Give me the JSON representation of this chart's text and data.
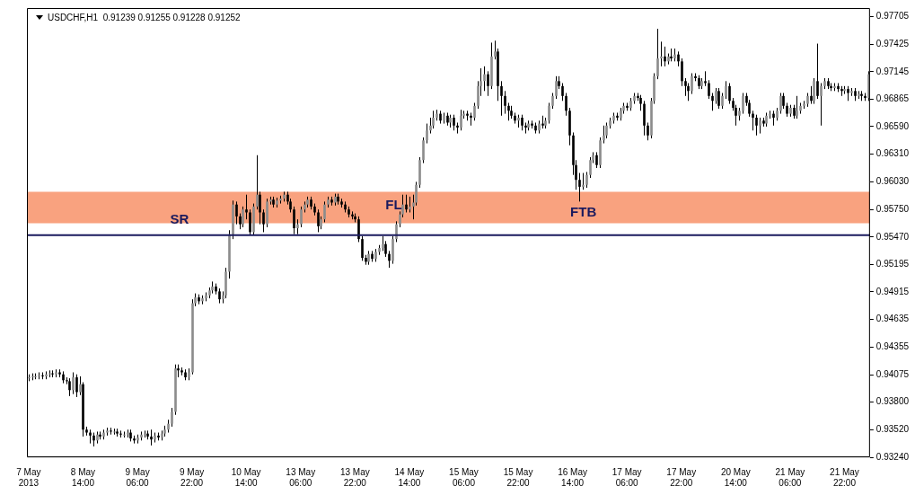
{
  "chart_data": {
    "type": "candlestick",
    "title": "USDCHF,H1  0.91239 0.91255 0.91228 0.91252",
    "categories": [
      "7 May 2013",
      null,
      null,
      null,
      null,
      null,
      null,
      null,
      null,
      null,
      null,
      null,
      null,
      null,
      null,
      null,
      "8 May 14:00",
      null,
      null,
      null,
      null,
      null,
      null,
      null,
      null,
      null,
      null,
      null,
      null,
      null,
      null,
      null,
      "9 May 06:00",
      null,
      null,
      null,
      null,
      null,
      null,
      null,
      null,
      null,
      null,
      null,
      null,
      null,
      null,
      null,
      "9 May 22:00",
      null,
      null,
      null,
      null,
      null,
      null,
      null,
      null,
      null,
      null,
      null,
      null,
      null,
      null,
      null,
      "10 May 14:00",
      null,
      null,
      null,
      null,
      null,
      null,
      null,
      null,
      null,
      null,
      null,
      null,
      null,
      null,
      null,
      "13 May 06:00",
      null,
      null,
      null,
      null,
      null,
      null,
      null,
      null,
      null,
      null,
      null,
      null,
      null,
      null,
      null,
      "13 May 22:00",
      null,
      null,
      null,
      null,
      null,
      null,
      null,
      null,
      null,
      null,
      null,
      null,
      null,
      null,
      null,
      "14 May 14:00",
      null,
      null,
      null,
      null,
      null,
      null,
      null,
      null,
      null,
      null,
      null,
      null,
      null,
      null,
      null,
      "15 May 06:00",
      null,
      null,
      null,
      null,
      null,
      null,
      null,
      null,
      null,
      null,
      null,
      null,
      null,
      null,
      null,
      "15 May 22:00",
      null,
      null,
      null,
      null,
      null,
      null,
      null,
      null,
      null,
      null,
      null,
      null,
      null,
      null,
      null,
      "16 May 14:00",
      null,
      null,
      null,
      null,
      null,
      null,
      null,
      null,
      null,
      null,
      null,
      null,
      null,
      null,
      null,
      "17 May 06:00",
      null,
      null,
      null,
      null,
      null,
      null,
      null,
      null,
      null,
      null,
      null,
      null,
      null,
      null,
      null,
      "17 May 22:00",
      null,
      null,
      null,
      null,
      null,
      null,
      null,
      null,
      null,
      null,
      null,
      null,
      null,
      null,
      null,
      "20 May 14:00",
      null,
      null,
      null,
      null,
      null,
      null,
      null,
      null,
      null,
      null,
      null,
      null,
      null,
      null,
      null,
      "21 May 06:00",
      null,
      null,
      null,
      null,
      null,
      null,
      null,
      null,
      null,
      null,
      null,
      null,
      null,
      null,
      null,
      "21 May 22:00",
      null,
      null,
      null,
      null,
      null,
      null,
      null
    ],
    "ohlc": [
      [
        0.9404,
        0.9408,
        0.9401,
        0.9405
      ],
      [
        0.9405,
        0.9409,
        0.9402,
        0.9406
      ],
      [
        0.9406,
        0.9409,
        0.9403,
        0.9406
      ],
      [
        0.9406,
        0.941,
        0.9403,
        0.9407
      ],
      [
        0.9407,
        0.941,
        0.9403,
        0.9406
      ],
      [
        0.9406,
        0.9411,
        0.9403,
        0.9408
      ],
      [
        0.9408,
        0.9412,
        0.9405,
        0.9409
      ],
      [
        0.9409,
        0.9412,
        0.9405,
        0.9408
      ],
      [
        0.9408,
        0.9413,
        0.9405,
        0.941
      ],
      [
        0.941,
        0.9413,
        0.9405,
        0.9408
      ],
      [
        0.9408,
        0.9411,
        0.9399,
        0.9402
      ],
      [
        0.9402,
        0.9405,
        0.9398,
        0.9401
      ],
      [
        0.9401,
        0.9404,
        0.9386,
        0.9392
      ],
      [
        0.9392,
        0.941,
        0.9388,
        0.9405
      ],
      [
        0.9405,
        0.9408,
        0.9385,
        0.939
      ],
      [
        0.939,
        0.9406,
        0.9387,
        0.9398
      ],
      [
        0.9398,
        0.94,
        0.9345,
        0.9352
      ],
      [
        0.9352,
        0.9355,
        0.9346,
        0.9349
      ],
      [
        0.9349,
        0.9352,
        0.9338,
        0.9346
      ],
      [
        0.9346,
        0.9349,
        0.9335,
        0.9341
      ],
      [
        0.9341,
        0.935,
        0.9338,
        0.9347
      ],
      [
        0.9347,
        0.935,
        0.9342,
        0.9345
      ],
      [
        0.9345,
        0.9352,
        0.9342,
        0.9349
      ],
      [
        0.9349,
        0.9354,
        0.9346,
        0.9351
      ],
      [
        0.9351,
        0.9354,
        0.9347,
        0.935
      ],
      [
        0.935,
        0.9353,
        0.9347,
        0.935
      ],
      [
        0.935,
        0.9353,
        0.9345,
        0.9348
      ],
      [
        0.9348,
        0.9351,
        0.9344,
        0.9347
      ],
      [
        0.9347,
        0.935,
        0.9344,
        0.9347
      ],
      [
        0.9347,
        0.9352,
        0.9344,
        0.9349
      ],
      [
        0.9349,
        0.9352,
        0.934,
        0.9343
      ],
      [
        0.9343,
        0.9346,
        0.9338,
        0.9341
      ],
      [
        0.9341,
        0.9347,
        0.9338,
        0.9344
      ],
      [
        0.9344,
        0.935,
        0.9341,
        0.9347
      ],
      [
        0.9347,
        0.9351,
        0.9344,
        0.9348
      ],
      [
        0.9348,
        0.9351,
        0.9342,
        0.9345
      ],
      [
        0.9345,
        0.9352,
        0.9336,
        0.9342
      ],
      [
        0.9342,
        0.9349,
        0.9339,
        0.9346
      ],
      [
        0.9346,
        0.9349,
        0.9341,
        0.9344
      ],
      [
        0.9344,
        0.9351,
        0.9341,
        0.9348
      ],
      [
        0.9348,
        0.9356,
        0.9345,
        0.9352
      ],
      [
        0.9352,
        0.9362,
        0.9349,
        0.9358
      ],
      [
        0.9358,
        0.9374,
        0.9355,
        0.937
      ],
      [
        0.937,
        0.9418,
        0.9367,
        0.9414
      ],
      [
        0.9414,
        0.9418,
        0.9405,
        0.9412
      ],
      [
        0.9412,
        0.9415,
        0.9407,
        0.941
      ],
      [
        0.941,
        0.9413,
        0.9402,
        0.9405
      ],
      [
        0.9405,
        0.9414,
        0.9402,
        0.941
      ],
      [
        0.941,
        0.9484,
        0.9408,
        0.948
      ],
      [
        0.948,
        0.949,
        0.9477,
        0.9486
      ],
      [
        0.9486,
        0.9489,
        0.9479,
        0.9482
      ],
      [
        0.9482,
        0.9488,
        0.9479,
        0.9485
      ],
      [
        0.9485,
        0.9491,
        0.9482,
        0.9488
      ],
      [
        0.9488,
        0.9496,
        0.9485,
        0.9493
      ],
      [
        0.9493,
        0.9502,
        0.949,
        0.9497
      ],
      [
        0.9497,
        0.95,
        0.9489,
        0.9492
      ],
      [
        0.9492,
        0.9495,
        0.948,
        0.9484
      ],
      [
        0.9484,
        0.9492,
        0.948,
        0.9488
      ],
      [
        0.9488,
        0.9516,
        0.9485,
        0.9512
      ],
      [
        0.9512,
        0.9554,
        0.9505,
        0.955
      ],
      [
        0.955,
        0.9584,
        0.9545,
        0.958
      ],
      [
        0.958,
        0.9583,
        0.956,
        0.9568
      ],
      [
        0.9568,
        0.9571,
        0.9555,
        0.956
      ],
      [
        0.956,
        0.9578,
        0.9557,
        0.9575
      ],
      [
        0.9575,
        0.959,
        0.9565,
        0.9572
      ],
      [
        0.9572,
        0.9575,
        0.9549,
        0.9552
      ],
      [
        0.9552,
        0.9581,
        0.9549,
        0.9578
      ],
      [
        0.9578,
        0.963,
        0.9575,
        0.959
      ],
      [
        0.959,
        0.9593,
        0.956,
        0.9572
      ],
      [
        0.9572,
        0.9575,
        0.9552,
        0.956
      ],
      [
        0.956,
        0.9586,
        0.9557,
        0.9583
      ],
      [
        0.9583,
        0.9588,
        0.958,
        0.9585
      ],
      [
        0.9585,
        0.9588,
        0.9577,
        0.958
      ],
      [
        0.958,
        0.9587,
        0.9577,
        0.9584
      ],
      [
        0.9584,
        0.9589,
        0.9581,
        0.9586
      ],
      [
        0.9586,
        0.9593,
        0.9583,
        0.959
      ],
      [
        0.959,
        0.9593,
        0.958,
        0.9583
      ],
      [
        0.9583,
        0.9586,
        0.9572,
        0.9575
      ],
      [
        0.9575,
        0.9578,
        0.955,
        0.9556
      ],
      [
        0.9556,
        0.9565,
        0.955,
        0.956
      ],
      [
        0.956,
        0.9578,
        0.9557,
        0.9575
      ],
      [
        0.9575,
        0.9583,
        0.9572,
        0.958
      ],
      [
        0.958,
        0.9588,
        0.9577,
        0.9585
      ],
      [
        0.9585,
        0.9588,
        0.9575,
        0.9578
      ],
      [
        0.9578,
        0.9581,
        0.9569,
        0.9572
      ],
      [
        0.9572,
        0.9575,
        0.9552,
        0.9558
      ],
      [
        0.9558,
        0.9568,
        0.9555,
        0.9565
      ],
      [
        0.9565,
        0.9583,
        0.9562,
        0.958
      ],
      [
        0.958,
        0.9588,
        0.9577,
        0.9585
      ],
      [
        0.9585,
        0.9588,
        0.9579,
        0.9582
      ],
      [
        0.9582,
        0.9591,
        0.9579,
        0.9588
      ],
      [
        0.9588,
        0.9591,
        0.958,
        0.9583
      ],
      [
        0.9583,
        0.9586,
        0.9577,
        0.958
      ],
      [
        0.958,
        0.9583,
        0.9572,
        0.9575
      ],
      [
        0.9575,
        0.9578,
        0.9567,
        0.957
      ],
      [
        0.957,
        0.9573,
        0.9565,
        0.9568
      ],
      [
        0.9568,
        0.9571,
        0.9562,
        0.9565
      ],
      [
        0.9565,
        0.9568,
        0.9542,
        0.9545
      ],
      [
        0.9545,
        0.9548,
        0.9523,
        0.9526
      ],
      [
        0.9526,
        0.9529,
        0.9519,
        0.9522
      ],
      [
        0.9522,
        0.9533,
        0.9519,
        0.953
      ],
      [
        0.953,
        0.9533,
        0.9522,
        0.9525
      ],
      [
        0.9525,
        0.9535,
        0.9522,
        0.9532
      ],
      [
        0.9532,
        0.9539,
        0.9529,
        0.9536
      ],
      [
        0.9536,
        0.9548,
        0.9533,
        0.954
      ],
      [
        0.954,
        0.9543,
        0.9527,
        0.953
      ],
      [
        0.953,
        0.9533,
        0.9516,
        0.9523
      ],
      [
        0.9523,
        0.9548,
        0.952,
        0.9545
      ],
      [
        0.9545,
        0.9563,
        0.9542,
        0.956
      ],
      [
        0.956,
        0.9573,
        0.9557,
        0.957
      ],
      [
        0.957,
        0.959,
        0.9567,
        0.958
      ],
      [
        0.958,
        0.959,
        0.9572,
        0.9575
      ],
      [
        0.9575,
        0.9588,
        0.9572,
        0.9578
      ],
      [
        0.9578,
        0.959,
        0.9565,
        0.9582
      ],
      [
        0.9582,
        0.9603,
        0.9579,
        0.96
      ],
      [
        0.96,
        0.9628,
        0.9597,
        0.9625
      ],
      [
        0.9625,
        0.9648,
        0.9622,
        0.9645
      ],
      [
        0.9645,
        0.9662,
        0.9642,
        0.9655
      ],
      [
        0.9655,
        0.9668,
        0.9652,
        0.966
      ],
      [
        0.966,
        0.9675,
        0.9657,
        0.9668
      ],
      [
        0.9668,
        0.9676,
        0.9665,
        0.9672
      ],
      [
        0.9672,
        0.9675,
        0.9662,
        0.9665
      ],
      [
        0.9665,
        0.9673,
        0.9662,
        0.967
      ],
      [
        0.967,
        0.9673,
        0.966,
        0.9663
      ],
      [
        0.9663,
        0.9671,
        0.9658,
        0.9668
      ],
      [
        0.9668,
        0.9671,
        0.9655,
        0.966
      ],
      [
        0.966,
        0.9663,
        0.9652,
        0.9658
      ],
      [
        0.9658,
        0.9676,
        0.9655,
        0.967
      ],
      [
        0.967,
        0.9675,
        0.9667,
        0.9672
      ],
      [
        0.9672,
        0.9675,
        0.9665,
        0.967
      ],
      [
        0.967,
        0.9673,
        0.966,
        0.9668
      ],
      [
        0.9668,
        0.9683,
        0.9665,
        0.968
      ],
      [
        0.968,
        0.9705,
        0.9677,
        0.97
      ],
      [
        0.97,
        0.9718,
        0.969,
        0.9705
      ],
      [
        0.9705,
        0.972,
        0.9695,
        0.9712
      ],
      [
        0.9712,
        0.9715,
        0.969,
        0.97
      ],
      [
        0.97,
        0.9744,
        0.9697,
        0.973
      ],
      [
        0.973,
        0.9746,
        0.9727,
        0.9735
      ],
      [
        0.9735,
        0.9738,
        0.9685,
        0.97
      ],
      [
        0.97,
        0.9705,
        0.967,
        0.969
      ],
      [
        0.969,
        0.9695,
        0.9672,
        0.968
      ],
      [
        0.968,
        0.9683,
        0.9665,
        0.9675
      ],
      [
        0.9675,
        0.968,
        0.9667,
        0.967
      ],
      [
        0.967,
        0.9673,
        0.9662,
        0.9665
      ],
      [
        0.9665,
        0.9671,
        0.9658,
        0.9668
      ],
      [
        0.9668,
        0.9671,
        0.9655,
        0.966
      ],
      [
        0.966,
        0.9663,
        0.9652,
        0.9658
      ],
      [
        0.9658,
        0.9665,
        0.9655,
        0.9662
      ],
      [
        0.9662,
        0.9665,
        0.9657,
        0.966
      ],
      [
        0.966,
        0.9663,
        0.9652,
        0.9655
      ],
      [
        0.9655,
        0.9665,
        0.9652,
        0.9662
      ],
      [
        0.9662,
        0.967,
        0.9657,
        0.966
      ],
      [
        0.966,
        0.9668,
        0.9657,
        0.9665
      ],
      [
        0.9665,
        0.9683,
        0.9662,
        0.968
      ],
      [
        0.968,
        0.9693,
        0.9677,
        0.969
      ],
      [
        0.969,
        0.971,
        0.9687,
        0.9705
      ],
      [
        0.9705,
        0.971,
        0.9697,
        0.97
      ],
      [
        0.97,
        0.9703,
        0.9685,
        0.969
      ],
      [
        0.969,
        0.9693,
        0.967,
        0.9675
      ],
      [
        0.9675,
        0.9678,
        0.964,
        0.965
      ],
      [
        0.965,
        0.9653,
        0.961,
        0.962
      ],
      [
        0.962,
        0.9625,
        0.9595,
        0.9605
      ],
      [
        0.9605,
        0.9612,
        0.9583,
        0.9598
      ],
      [
        0.9598,
        0.9612,
        0.9595,
        0.96
      ],
      [
        0.96,
        0.9613,
        0.9597,
        0.961
      ],
      [
        0.961,
        0.9628,
        0.9607,
        0.9625
      ],
      [
        0.9625,
        0.9633,
        0.9622,
        0.963
      ],
      [
        0.963,
        0.9633,
        0.9617,
        0.962
      ],
      [
        0.962,
        0.9648,
        0.9617,
        0.9645
      ],
      [
        0.9645,
        0.966,
        0.9642,
        0.965
      ],
      [
        0.965,
        0.9663,
        0.9647,
        0.966
      ],
      [
        0.966,
        0.9668,
        0.9657,
        0.9665
      ],
      [
        0.9665,
        0.9673,
        0.9662,
        0.967
      ],
      [
        0.967,
        0.9673,
        0.9665,
        0.9668
      ],
      [
        0.9668,
        0.9678,
        0.9665,
        0.9675
      ],
      [
        0.9675,
        0.9683,
        0.9672,
        0.968
      ],
      [
        0.968,
        0.9683,
        0.9675,
        0.9678
      ],
      [
        0.9678,
        0.9688,
        0.9675,
        0.9685
      ],
      [
        0.9685,
        0.9693,
        0.9682,
        0.969
      ],
      [
        0.969,
        0.9693,
        0.9685,
        0.9688
      ],
      [
        0.9688,
        0.9691,
        0.9675,
        0.9682
      ],
      [
        0.9682,
        0.9685,
        0.965,
        0.966
      ],
      [
        0.966,
        0.9663,
        0.9645,
        0.965
      ],
      [
        0.965,
        0.9688,
        0.9647,
        0.9685
      ],
      [
        0.9685,
        0.9713,
        0.9682,
        0.971
      ],
      [
        0.971,
        0.9758,
        0.9707,
        0.9728
      ],
      [
        0.9728,
        0.9745,
        0.972,
        0.973
      ],
      [
        0.973,
        0.974,
        0.972,
        0.9725
      ],
      [
        0.9725,
        0.9733,
        0.9722,
        0.973
      ],
      [
        0.973,
        0.9738,
        0.9725,
        0.9728
      ],
      [
        0.9728,
        0.9738,
        0.9725,
        0.9732
      ],
      [
        0.9732,
        0.9735,
        0.972,
        0.9725
      ],
      [
        0.9725,
        0.9728,
        0.97,
        0.9705
      ],
      [
        0.9705,
        0.9708,
        0.969,
        0.97
      ],
      [
        0.97,
        0.9703,
        0.9685,
        0.9695
      ],
      [
        0.9695,
        0.9713,
        0.9692,
        0.971
      ],
      [
        0.971,
        0.9713,
        0.9705,
        0.9708
      ],
      [
        0.9708,
        0.9711,
        0.9697,
        0.97
      ],
      [
        0.97,
        0.9708,
        0.9697,
        0.9705
      ],
      [
        0.9705,
        0.9715,
        0.97,
        0.9703
      ],
      [
        0.9703,
        0.9706,
        0.9687,
        0.969
      ],
      [
        0.969,
        0.9693,
        0.9675,
        0.9685
      ],
      [
        0.9685,
        0.9698,
        0.9682,
        0.9695
      ],
      [
        0.9695,
        0.9698,
        0.9677,
        0.968
      ],
      [
        0.968,
        0.9693,
        0.9677,
        0.969
      ],
      [
        0.969,
        0.9705,
        0.9687,
        0.97
      ],
      [
        0.97,
        0.9703,
        0.9682,
        0.9685
      ],
      [
        0.9685,
        0.9688,
        0.9675,
        0.9678
      ],
      [
        0.9678,
        0.9681,
        0.966,
        0.967
      ],
      [
        0.967,
        0.9678,
        0.9665,
        0.9675
      ],
      [
        0.9675,
        0.9693,
        0.9672,
        0.969
      ],
      [
        0.969,
        0.9693,
        0.968,
        0.9683
      ],
      [
        0.9683,
        0.9686,
        0.9669,
        0.9672
      ],
      [
        0.9672,
        0.9675,
        0.9655,
        0.9668
      ],
      [
        0.9668,
        0.9671,
        0.965,
        0.966
      ],
      [
        0.966,
        0.9668,
        0.9652,
        0.9665
      ],
      [
        0.9665,
        0.9668,
        0.9659,
        0.9662
      ],
      [
        0.9662,
        0.9673,
        0.9659,
        0.967
      ],
      [
        0.967,
        0.9675,
        0.9667,
        0.9672
      ],
      [
        0.9672,
        0.9675,
        0.966,
        0.9668
      ],
      [
        0.9668,
        0.9678,
        0.9665,
        0.9675
      ],
      [
        0.9675,
        0.9693,
        0.9672,
        0.969
      ],
      [
        0.969,
        0.9693,
        0.9677,
        0.968
      ],
      [
        0.968,
        0.9683,
        0.9669,
        0.9672
      ],
      [
        0.9672,
        0.9681,
        0.9669,
        0.9678
      ],
      [
        0.9678,
        0.9681,
        0.9667,
        0.967
      ],
      [
        0.967,
        0.969,
        0.9667,
        0.9675
      ],
      [
        0.9675,
        0.9683,
        0.9672,
        0.968
      ],
      [
        0.968,
        0.9685,
        0.9677,
        0.9682
      ],
      [
        0.9682,
        0.9693,
        0.9679,
        0.969
      ],
      [
        0.969,
        0.97,
        0.9682,
        0.9685
      ],
      [
        0.9685,
        0.9708,
        0.9682,
        0.9705
      ],
      [
        0.9705,
        0.9743,
        0.9687,
        0.969
      ],
      [
        0.969,
        0.9703,
        0.966,
        0.97
      ],
      [
        0.97,
        0.9708,
        0.9697,
        0.9705
      ],
      [
        0.9705,
        0.9708,
        0.9697,
        0.97
      ],
      [
        0.97,
        0.9703,
        0.9695,
        0.9698
      ],
      [
        0.9698,
        0.9703,
        0.9695,
        0.97
      ],
      [
        0.97,
        0.9703,
        0.9694,
        0.9697
      ],
      [
        0.9697,
        0.97,
        0.969,
        0.9695
      ],
      [
        0.9695,
        0.97,
        0.9692,
        0.9697
      ],
      [
        0.9697,
        0.97,
        0.9685,
        0.9693
      ],
      [
        0.9693,
        0.9698,
        0.969,
        0.9695
      ],
      [
        0.9695,
        0.9698,
        0.9685,
        0.969
      ],
      [
        0.969,
        0.9695,
        0.9687,
        0.9692
      ],
      [
        0.9692,
        0.9695,
        0.9685,
        0.969
      ],
      [
        0.969,
        0.9693,
        0.9685,
        0.9688
      ],
      [
        0.9688,
        0.9715,
        0.9685,
        0.9712
      ]
    ],
    "ylim": [
      0.9324,
      0.9779
    ],
    "yticks": [
      0.97705,
      0.97425,
      0.97145,
      0.96865,
      {
        "value": 0.9659,
        "label": "0.96590"
      },
      {
        "value": 0.9631,
        "label": "0.96310"
      },
      {
        "value": 0.9603,
        "label": "0.96030"
      },
      {
        "value": 0.9575,
        "label": "0.95750"
      },
      {
        "value": 0.9547,
        "label": "0.95470"
      },
      0.95195,
      0.94915,
      0.94635,
      0.94355,
      0.94075,
      {
        "value": 0.938,
        "label": "0.93800"
      },
      {
        "value": 0.9352,
        "label": "0.93520"
      },
      {
        "value": 0.9324,
        "label": "0.93240"
      }
    ],
    "ref_lines": [
      {
        "axis": "y",
        "value": 0.9549,
        "label": "SR",
        "color": "#1a1a5e"
      }
    ],
    "bands": [
      {
        "axis": "y",
        "from": 0.9561,
        "to": 0.9593,
        "color": "#f9a27f"
      }
    ],
    "annotations": [
      "FL",
      "FTB"
    ]
  }
}
